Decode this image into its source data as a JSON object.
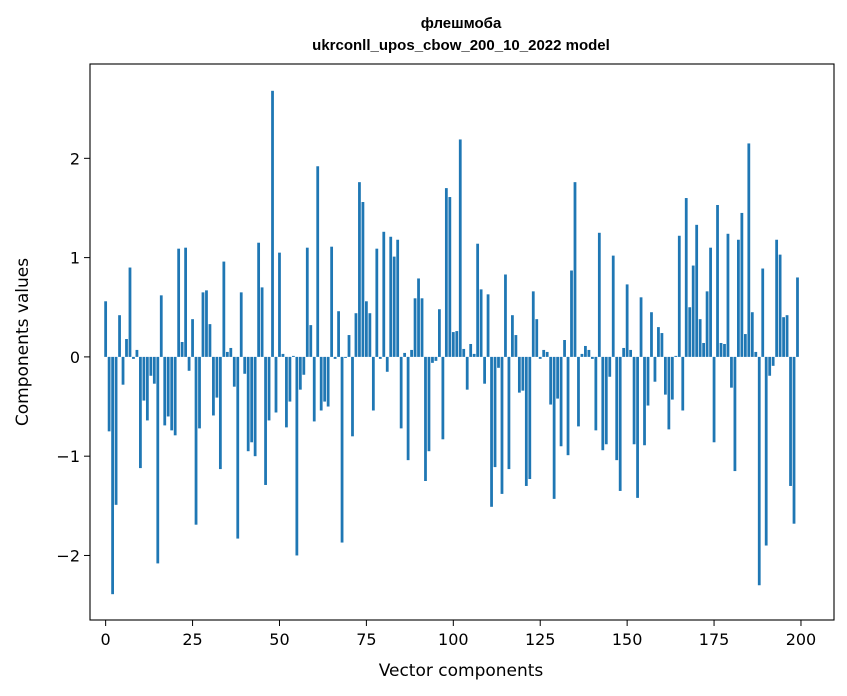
{
  "chart_data": {
    "type": "bar",
    "title": "флешмоба",
    "subtitle": "ukrconll_upos_cbow_200_10_2022 model",
    "xlabel": "Vector components",
    "ylabel": "Components values",
    "xlim": [
      -4.5,
      209.5
    ],
    "ylim": [
      -2.65,
      2.95
    ],
    "xticks": [
      0,
      25,
      50,
      75,
      100,
      125,
      150,
      175,
      200
    ],
    "yticks": [
      -2,
      -1,
      0,
      1,
      2
    ],
    "bar_color": "#1f77b4",
    "grid": false,
    "legend": "none",
    "values": [
      0.56,
      -0.75,
      -2.39,
      -1.49,
      0.42,
      -0.28,
      0.18,
      0.9,
      -0.02,
      0.07,
      -1.12,
      -0.44,
      -0.64,
      -0.19,
      -0.27,
      -2.08,
      0.62,
      -0.69,
      -0.6,
      -0.74,
      -0.79,
      1.09,
      0.15,
      1.1,
      -0.14,
      0.38,
      -1.69,
      -0.72,
      0.65,
      0.67,
      0.33,
      -0.59,
      -0.41,
      -1.13,
      0.96,
      0.05,
      0.09,
      -0.3,
      -1.83,
      0.65,
      -0.17,
      -0.95,
      -0.86,
      -1.0,
      1.15,
      0.7,
      -1.29,
      -0.64,
      2.68,
      -0.56,
      1.05,
      0.03,
      -0.71,
      -0.45,
      0.01,
      -2.0,
      -0.33,
      -0.18,
      1.1,
      0.32,
      -0.65,
      1.92,
      -0.54,
      -0.45,
      -0.5,
      1.11,
      -0.02,
      0.46,
      -1.87,
      -0.01,
      0.22,
      -0.8,
      0.44,
      1.76,
      1.56,
      0.56,
      0.44,
      -0.54,
      1.09,
      -0.02,
      1.26,
      -0.15,
      1.21,
      1.01,
      1.18,
      -0.72,
      0.04,
      -1.04,
      0.07,
      0.59,
      0.79,
      0.59,
      -1.25,
      -0.95,
      -0.06,
      -0.04,
      0.48,
      -0.83,
      1.7,
      1.61,
      0.25,
      0.26,
      2.19,
      0.08,
      -0.33,
      0.13,
      0.03,
      1.14,
      0.68,
      -0.27,
      0.63,
      -1.51,
      -1.11,
      -0.11,
      -1.38,
      0.83,
      -1.13,
      0.42,
      0.22,
      -0.36,
      -0.34,
      -1.3,
      -1.23,
      0.66,
      0.38,
      -0.02,
      0.07,
      0.05,
      -0.48,
      -1.43,
      -0.42,
      -0.9,
      0.17,
      -0.99,
      0.87,
      1.76,
      -0.7,
      0.03,
      0.11,
      0.07,
      -0.02,
      -0.74,
      1.25,
      -0.94,
      -0.88,
      -0.2,
      1.02,
      -1.04,
      -1.35,
      0.09,
      0.73,
      0.07,
      -0.88,
      -1.42,
      0.6,
      -0.89,
      -0.49,
      0.45,
      -0.25,
      0.3,
      0.24,
      -0.38,
      -0.73,
      -0.43,
      0.01,
      1.22,
      -0.54,
      1.6,
      0.5,
      0.92,
      1.33,
      0.38,
      0.14,
      0.66,
      1.1,
      -0.86,
      1.53,
      0.14,
      0.13,
      1.24,
      -0.31,
      -1.15,
      1.18,
      1.45,
      0.23,
      2.15,
      0.45,
      0.05,
      -2.3,
      0.89,
      -1.9,
      -0.19,
      -0.09,
      1.18,
      1.03,
      0.4,
      0.42,
      -1.3,
      -1.68,
      0.8
    ]
  }
}
